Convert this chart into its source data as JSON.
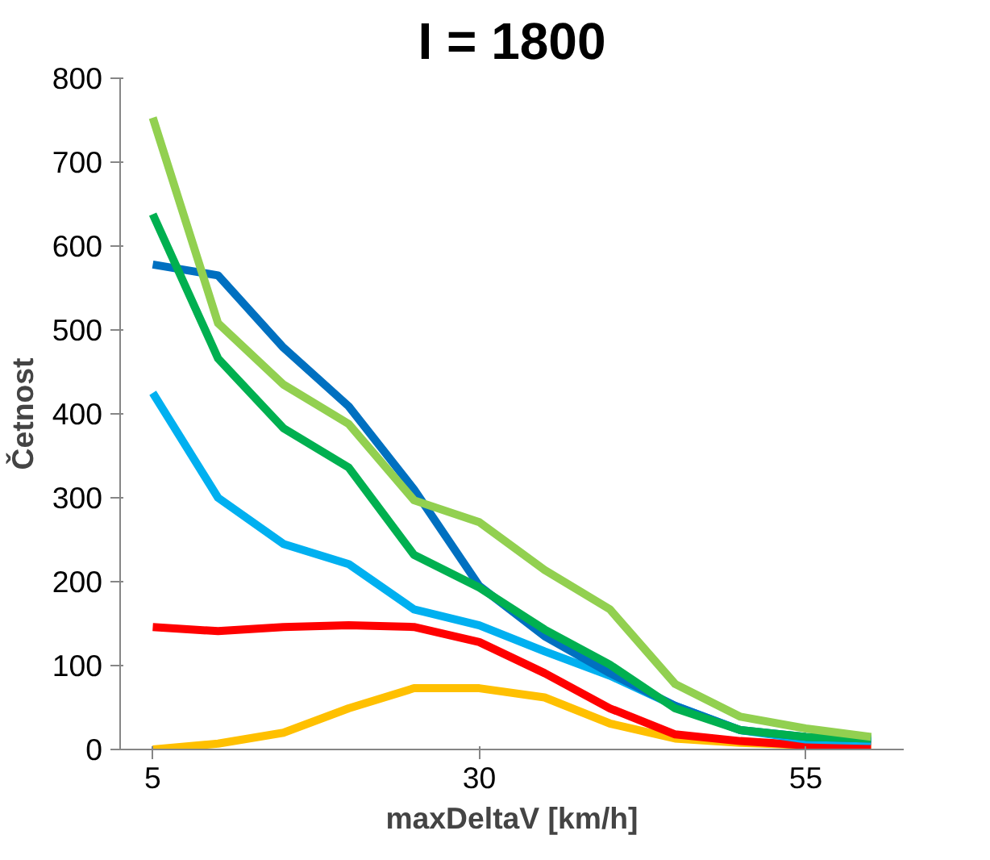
{
  "chart_data": {
    "type": "line",
    "title": "I = 1800",
    "xlabel": "maxDeltaV [km/h]",
    "ylabel": "Četnost",
    "categories": [
      "5",
      null,
      null,
      null,
      null,
      "30",
      null,
      null,
      null,
      null,
      "55",
      null
    ],
    "series": [
      {
        "color": "#ffc000",
        "values": [
          0,
          7,
          20,
          49,
          73,
          73,
          62,
          31,
          13,
          8,
          5,
          5
        ]
      },
      {
        "color": "#ff0000",
        "values": [
          146,
          141,
          146,
          148,
          146,
          128,
          91,
          49,
          18,
          10,
          5,
          5
        ]
      },
      {
        "color": "#00b0f0",
        "values": [
          425,
          300,
          245,
          221,
          167,
          148,
          117,
          88,
          52,
          23,
          12,
          10
        ]
      },
      {
        "color": "#0070c0",
        "values": [
          578,
          565,
          479,
          409,
          310,
          195,
          135,
          91,
          52,
          23,
          15,
          13
        ]
      },
      {
        "color": "#00b050",
        "values": [
          638,
          466,
          383,
          336,
          232,
          193,
          143,
          101,
          49,
          23,
          15,
          13
        ]
      },
      {
        "color": "#92d050",
        "values": [
          753,
          508,
          435,
          388,
          297,
          271,
          214,
          167,
          78,
          39,
          25,
          15
        ]
      }
    ],
    "ylim": [
      0,
      800
    ],
    "yticks": [
      0,
      100,
      200,
      300,
      400,
      500,
      600,
      700,
      800
    ],
    "grid": false
  }
}
